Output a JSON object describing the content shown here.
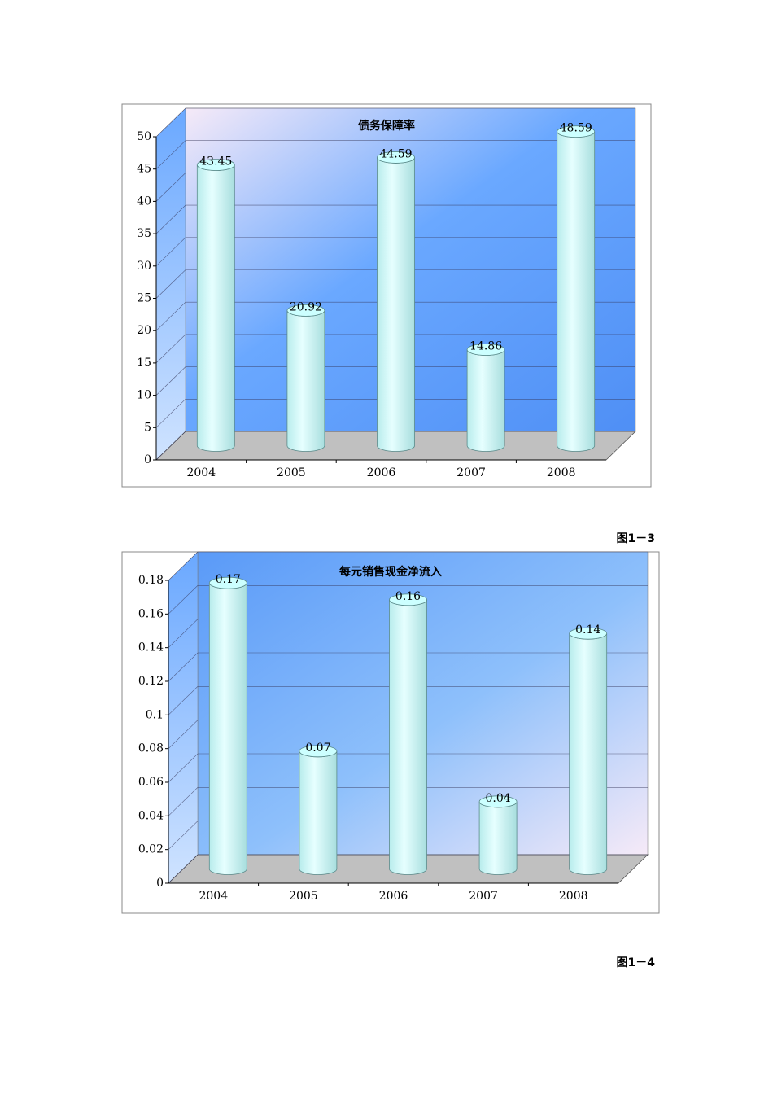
{
  "chart_data": [
    {
      "type": "bar",
      "title": "债务保障率",
      "categories": [
        "2004",
        "2005",
        "2006",
        "2007",
        "2008"
      ],
      "values": [
        43.45,
        20.92,
        44.59,
        14.86,
        48.59
      ],
      "color": "#ccffff",
      "ylim": [
        0,
        50
      ],
      "yticks": [
        0,
        5,
        10,
        15,
        20,
        25,
        30,
        35,
        40,
        45,
        50
      ],
      "grid": true
    },
    {
      "type": "bar",
      "title": "每元销售现金净流入",
      "categories": [
        "2004",
        "2005",
        "2006",
        "2007",
        "2008"
      ],
      "values": [
        0.17,
        0.07,
        0.16,
        0.04,
        0.14
      ],
      "color": "#ccffff",
      "ylim": [
        0,
        0.18
      ],
      "yticks": [
        0,
        0.02,
        0.04,
        0.06,
        0.08,
        0.1,
        0.12,
        0.14,
        0.16,
        0.18
      ],
      "grid": true
    }
  ],
  "captions": [
    "图1－3",
    "图1－4"
  ]
}
